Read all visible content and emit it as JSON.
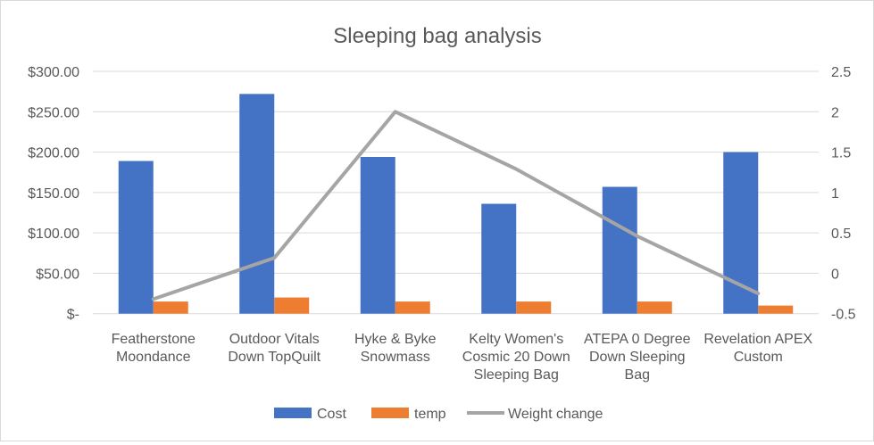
{
  "chart_data": {
    "type": "bar+line",
    "title": "Sleeping bag analysis",
    "categories": [
      [
        "Featherstone",
        "Moondance"
      ],
      [
        "Outdoor Vitals",
        "Down TopQuilt"
      ],
      [
        "Hyke & Byke",
        "Snowmass"
      ],
      [
        "Kelty Women's",
        "Cosmic 20 Down",
        "Sleeping Bag"
      ],
      [
        "ATEPA 0 Degree",
        "Down Sleeping",
        "Bag"
      ],
      [
        "Revelation APEX",
        "Custom"
      ]
    ],
    "series": [
      {
        "name": "Cost",
        "type": "bar",
        "axis": "left",
        "color": "#4472c4",
        "values": [
          189,
          272,
          194,
          136,
          157,
          200
        ]
      },
      {
        "name": "temp",
        "type": "bar",
        "axis": "left",
        "color": "#ed7d31",
        "values": [
          15,
          20,
          15,
          15,
          15,
          10
        ]
      },
      {
        "name": "Weight change",
        "type": "line",
        "axis": "right",
        "color": "#a5a5a5",
        "values": [
          -0.32,
          0.19,
          2.0,
          1.29,
          0.46,
          -0.25
        ]
      }
    ],
    "left_axis": {
      "range": [
        0,
        300
      ],
      "ticks": [
        "$-",
        "$50.00",
        "$100.00",
        "$150.00",
        "$200.00",
        "$250.00",
        "$300.00"
      ]
    },
    "right_axis": {
      "range": [
        -0.5,
        2.5
      ],
      "ticks": [
        "-0.5",
        "0",
        "0.5",
        "1",
        "1.5",
        "2",
        "2.5"
      ]
    },
    "grid": true,
    "legend_position": "bottom"
  }
}
